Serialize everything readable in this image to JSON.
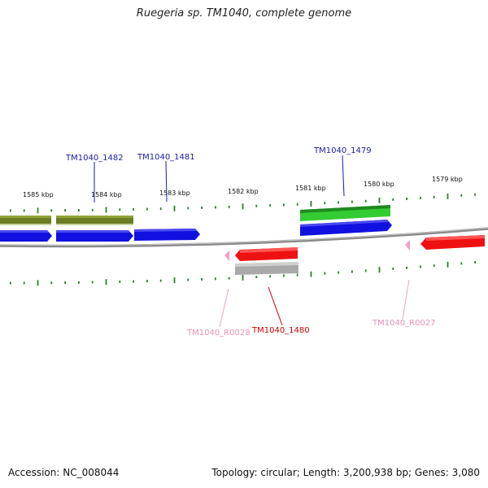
{
  "title": "Ruegeria sp. TM1040, complete genome",
  "footer": {
    "accession": "Accession: NC_008044",
    "summary": "Topology: circular; Length: 3,200,938 bp; Genes: 3,080"
  },
  "colors": {
    "backbone": "#8a8a8a",
    "tick": "#2e7d2e",
    "cds_blue": "#1010e0",
    "cds_blue_label": "#1a1aa8",
    "cds_red": "#ee1111",
    "cds_red_label": "#cc0000",
    "olive": "#6b7d22",
    "green": "#33cc33",
    "gray": "#a9a9a9",
    "rna_pink": "#f0a0c8",
    "rna_label": "#e890b8"
  },
  "scale_labels": [
    "1585 kbp",
    "1584 kbp",
    "1583 kbp",
    "1582 kbp",
    "1581 kbp",
    "1580 kbp",
    "1579 kbp"
  ],
  "gene_labels": {
    "g1482": "TM1040_1482",
    "g1481": "TM1040_1481",
    "g1479": "TM1040_1479",
    "r0028": "TM1040_R0028",
    "g1480": "TM1040_1480",
    "r0027": "TM1040_R0027"
  }
}
